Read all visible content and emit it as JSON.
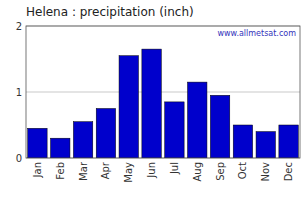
{
  "chart_data": {
    "type": "bar",
    "title": "Helena : precipitation (inch)",
    "categories": [
      "Jan",
      "Feb",
      "Mar",
      "Apr",
      "May",
      "Jun",
      "Jul",
      "Aug",
      "Sep",
      "Oct",
      "Nov",
      "Dec"
    ],
    "values": [
      0.45,
      0.3,
      0.55,
      0.75,
      1.55,
      1.65,
      0.85,
      1.15,
      0.95,
      0.5,
      0.4,
      0.5
    ],
    "color": "#0000CC",
    "ylim": [
      0,
      2.0
    ],
    "yticks": [
      0,
      1,
      2
    ],
    "grid": true,
    "annotations": [
      "www.allmetsat.com"
    ]
  }
}
